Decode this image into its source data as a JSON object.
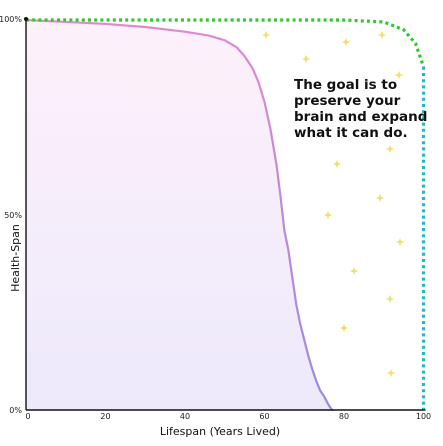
{
  "chart_data": {
    "type": "area",
    "title": "",
    "xlabel": "Lifespan (Years Lived)",
    "ylabel": "Health-Span",
    "xlim": [
      0,
      100
    ],
    "ylim": [
      0,
      100
    ],
    "x_ticks": [
      0,
      20,
      40,
      60,
      80,
      100
    ],
    "y_ticks": [
      {
        "value": 0,
        "label": "0%"
      },
      {
        "value": 50,
        "label": "50%"
      },
      {
        "value": 100,
        "label": "100%"
      }
    ],
    "grid": false,
    "series": [
      {
        "kind": "actual",
        "x": [
          0,
          10,
          20,
          30,
          40,
          46,
          50,
          53,
          55,
          57,
          58.5,
          60,
          61.5,
          63,
          64,
          65,
          66,
          67,
          68,
          69,
          70,
          71,
          72,
          73,
          74,
          75,
          76,
          77
        ],
        "y": [
          100,
          99.5,
          99,
          98.2,
          97,
          96,
          94.8,
          93,
          90.7,
          87.6,
          84,
          79,
          72,
          63,
          55,
          46,
          41,
          34,
          27,
          22,
          18,
          14,
          10.5,
          7.5,
          5,
          3.5,
          1.5,
          0
        ]
      },
      {
        "kind": "potential",
        "x": [
          0,
          70,
          80,
          90,
          95,
          98,
          100,
          100
        ],
        "y": [
          100,
          100,
          100,
          99.5,
          97.5,
          94,
          88,
          0
        ]
      }
    ],
    "annotations": [
      {
        "text_lines": [
          "The goal is to",
          "preserve your",
          "brain and expand",
          "what it can do."
        ]
      }
    ],
    "colors": {
      "actual_line_top": "#e488d0",
      "actual_line_bottom": "#9b8ae0",
      "fill_top": "#fdf1fa",
      "fill_bottom": "#ede9fb",
      "potential_green": "#2fca2a",
      "potential_teal": "#22b8c8",
      "sparkle": "#f5dd6a",
      "axis": "#111111"
    }
  }
}
